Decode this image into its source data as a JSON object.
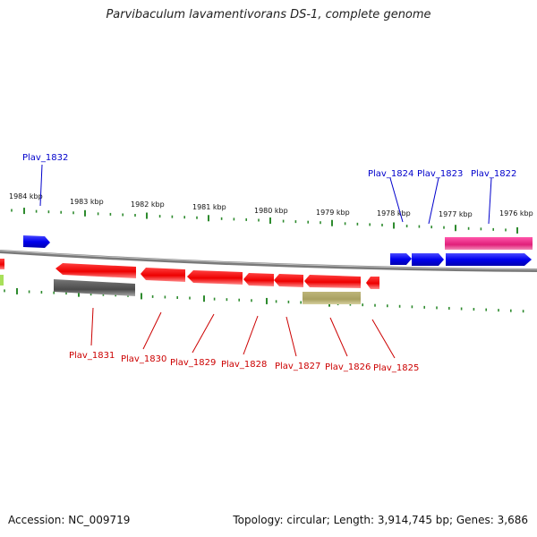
{
  "title": "Parvibaculum lavamentivorans DS-1, complete genome",
  "accession_text": "Accession: NC_009719",
  "topology_text": "Topology: circular; Length: 3,914,745 bp; Genes: 3,686",
  "colors": {
    "backbone": "#8c8c8c",
    "tick": "#2e8b2e",
    "forward_gene": "#0000ee",
    "reverse_gene": "#ee0000",
    "rna_feature": "#e0207a",
    "pseudo_feature_gray": "#555555",
    "pseudo_feature_olive": "#a8a060",
    "forward_label": "#0000cc",
    "reverse_label": "#cc0000"
  },
  "scale_labels": [
    {
      "text": "1984 kbp",
      "kbp": 1984
    },
    {
      "text": "1983 kbp",
      "kbp": 1983
    },
    {
      "text": "1982 kbp",
      "kbp": 1982
    },
    {
      "text": "1981 kbp",
      "kbp": 1981
    },
    {
      "text": "1980 kbp",
      "kbp": 1980
    },
    {
      "text": "1979 kbp",
      "kbp": 1979
    },
    {
      "text": "1978 kbp",
      "kbp": 1978
    },
    {
      "text": "1977 kbp",
      "kbp": 1977
    },
    {
      "text": "1976 kbp",
      "kbp": 1976
    }
  ],
  "forward_genes": [
    {
      "name": "Plav_1832",
      "labeled": true
    },
    {
      "name": "Plav_1824",
      "labeled": true
    },
    {
      "name": "Plav_1823",
      "labeled": true
    },
    {
      "name": "Plav_1822",
      "labeled": true
    }
  ],
  "reverse_genes": [
    {
      "name": "Plav_1831"
    },
    {
      "name": "Plav_1830"
    },
    {
      "name": "Plav_1829"
    },
    {
      "name": "Plav_1828"
    },
    {
      "name": "Plav_1827"
    },
    {
      "name": "Plav_1826"
    },
    {
      "name": "Plav_1825"
    }
  ]
}
